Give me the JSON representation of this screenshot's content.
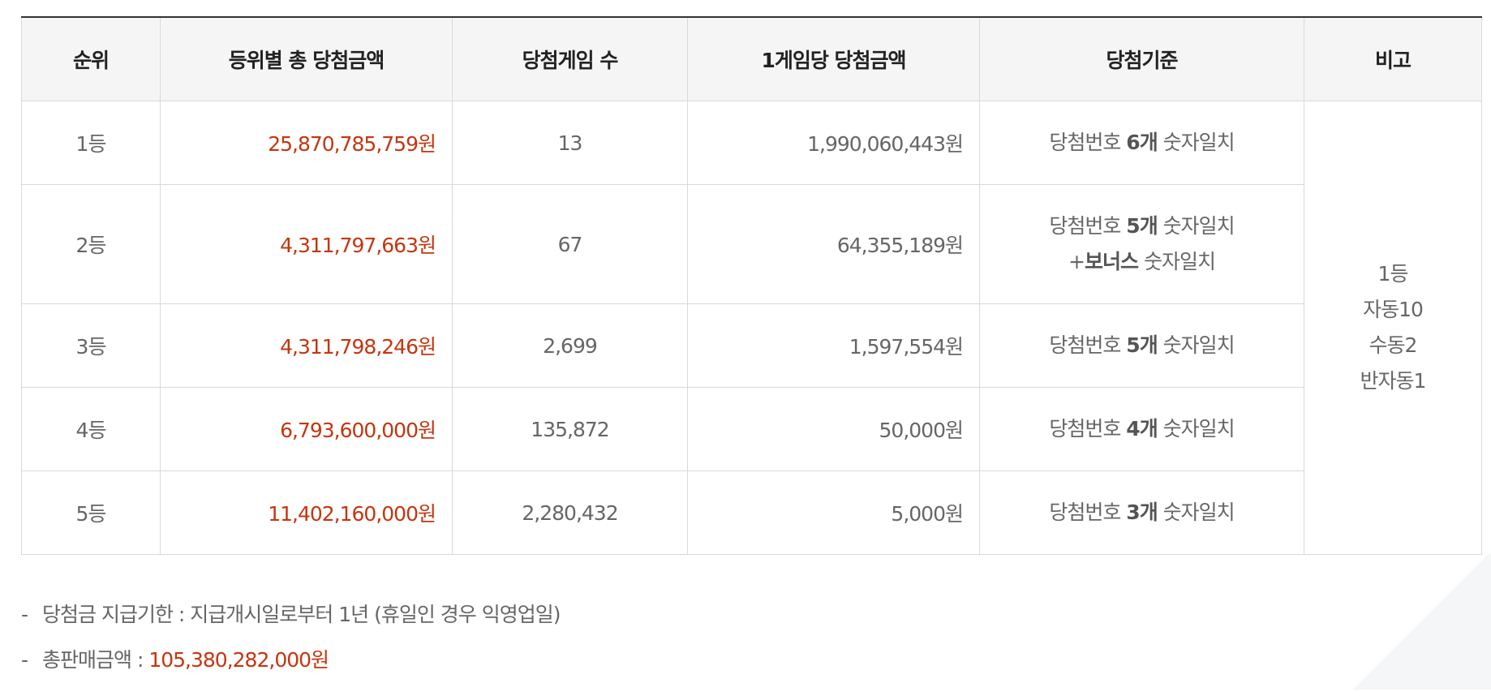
{
  "table": {
    "headers": [
      "순위",
      "등위별 총 당첨금액",
      "당첨게임 수",
      "1게임당 당첨금액",
      "당첨기준",
      "비고"
    ],
    "rows": [
      {
        "rank": "1등",
        "total": "25,870,785,759원",
        "games": "13",
        "per_game": "1,990,060,443원",
        "criteria": {
          "prefix": "당첨번호 ",
          "count": "6개",
          "suffix": " 숫자일치",
          "bonus_prefix": "",
          "bonus": "",
          "bonus_suffix": ""
        }
      },
      {
        "rank": "2등",
        "total": "4,311,797,663원",
        "games": "67",
        "per_game": "64,355,189원",
        "criteria": {
          "prefix": "당첨번호 ",
          "count": "5개",
          "suffix": " 숫자일치",
          "bonus_prefix": "+",
          "bonus": "보너스",
          "bonus_suffix": " 숫자일치"
        }
      },
      {
        "rank": "3등",
        "total": "4,311,798,246원",
        "games": "2,699",
        "per_game": "1,597,554원",
        "criteria": {
          "prefix": "당첨번호 ",
          "count": "5개",
          "suffix": " 숫자일치",
          "bonus_prefix": "",
          "bonus": "",
          "bonus_suffix": ""
        }
      },
      {
        "rank": "4등",
        "total": "6,793,600,000원",
        "games": "135,872",
        "per_game": "50,000원",
        "criteria": {
          "prefix": "당첨번호 ",
          "count": "4개",
          "suffix": " 숫자일치",
          "bonus_prefix": "",
          "bonus": "",
          "bonus_suffix": ""
        }
      },
      {
        "rank": "5등",
        "total": "11,402,160,000원",
        "games": "2,280,432",
        "per_game": "5,000원",
        "criteria": {
          "prefix": "당첨번호 ",
          "count": "3개",
          "suffix": " 숫자일치",
          "bonus_prefix": "",
          "bonus": "",
          "bonus_suffix": ""
        }
      }
    ],
    "remark": [
      "1등",
      "자동10",
      "수동2",
      "반자동1"
    ]
  },
  "notes": {
    "dash": "-",
    "payment_label": "당첨금 지급기한 : ",
    "payment_value": "지급개시일로부터 1년 (휴일인 경우 익영업일)",
    "sales_label": "총판매금액 : ",
    "sales_value": "105,380,282,000원"
  },
  "colors": {
    "accent_red": "#c6350f",
    "header_bg": "#f5f5f5",
    "border": "#d9d9d9"
  }
}
